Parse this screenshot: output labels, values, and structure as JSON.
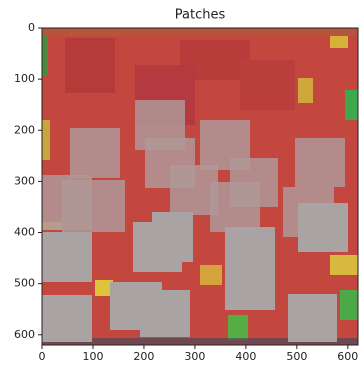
{
  "chart_data": {
    "type": "image",
    "title": "Patches",
    "xlim": [
      0,
      620
    ],
    "ylim": [
      620,
      0
    ],
    "xticks": [
      0,
      100,
      200,
      300,
      400,
      500,
      600
    ],
    "yticks": [
      0,
      100,
      200,
      300,
      400,
      500,
      600
    ]
  }
}
